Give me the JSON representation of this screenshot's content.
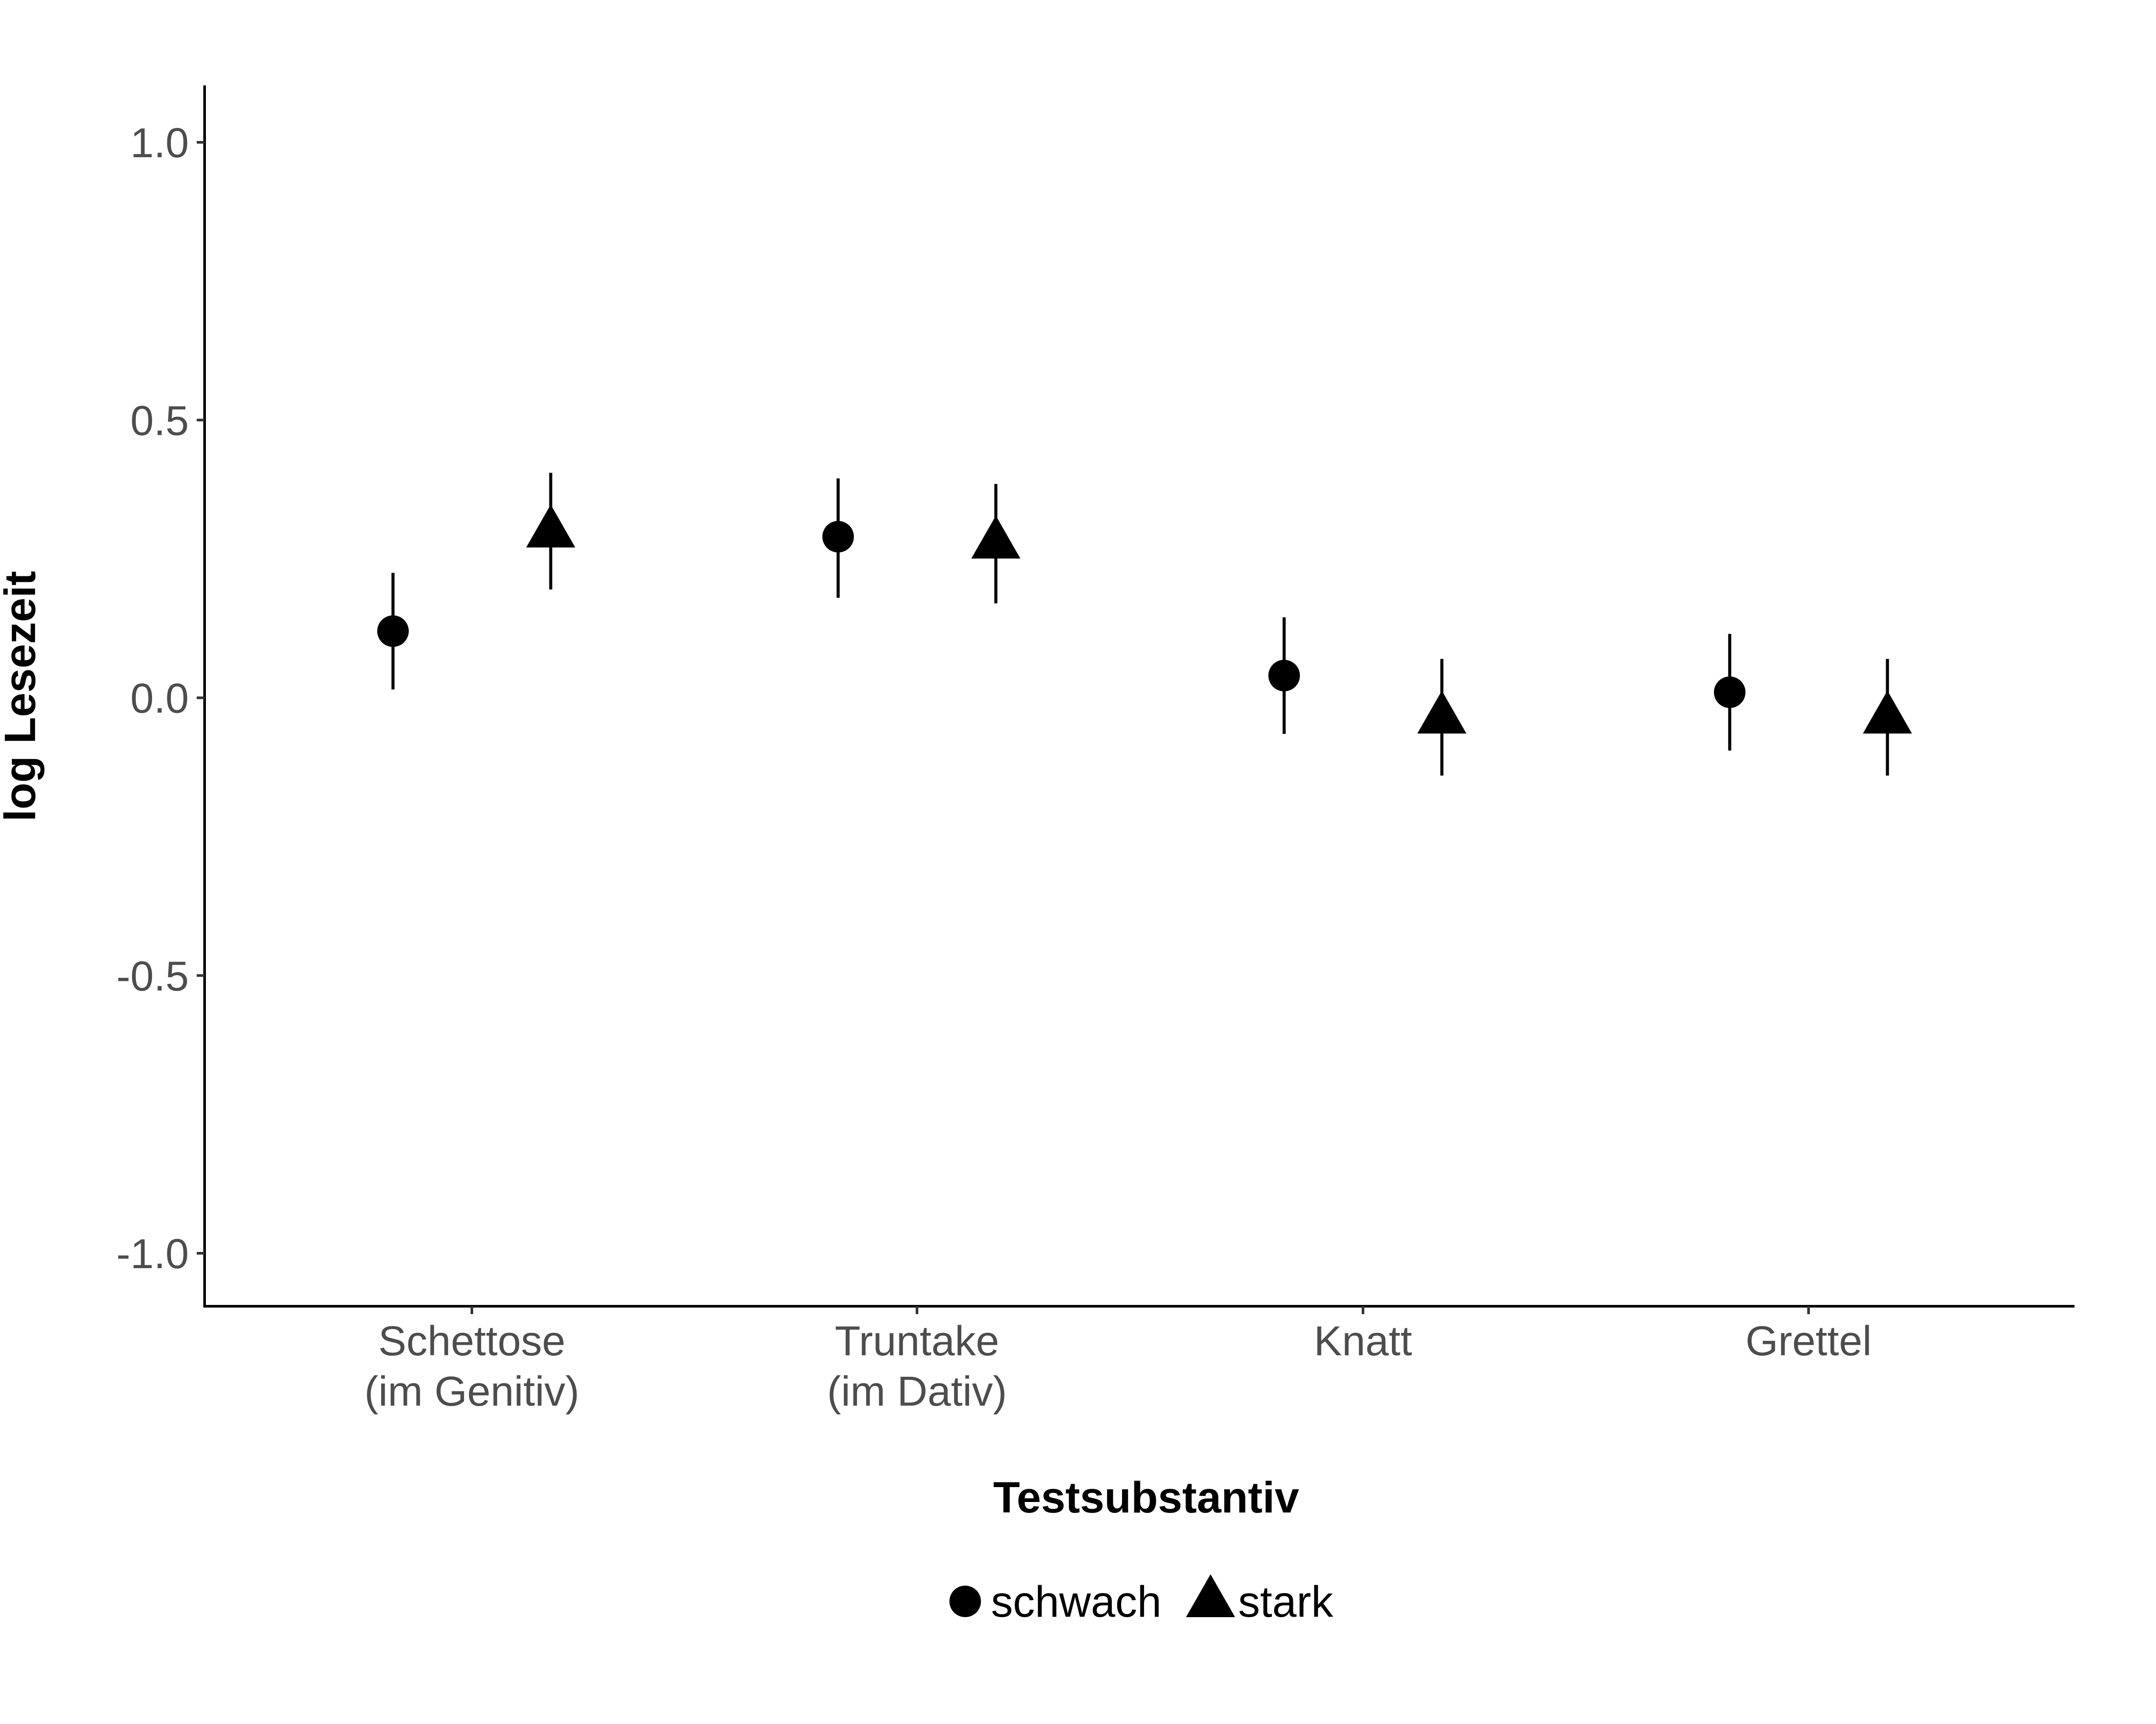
{
  "chart_data": {
    "type": "scatter",
    "title": "",
    "xlabel": "Testsubstantiv",
    "ylabel": "log Lesezeit",
    "ylim": [
      -1.1,
      1.1
    ],
    "yticks": [
      "-1.0",
      "-0.5",
      "0.0",
      "0.5",
      "1.0"
    ],
    "categories": [
      [
        "Schettose",
        "(im Genitiv)"
      ],
      [
        "Truntake",
        "(im Dativ)"
      ],
      [
        "Knatt"
      ],
      [
        "Grettel"
      ]
    ],
    "series": [
      {
        "name": "schwach",
        "marker": "circle",
        "values": [
          0.12,
          0.29,
          0.04,
          0.01
        ],
        "lower": [
          0.015,
          0.18,
          -0.065,
          -0.095
        ],
        "upper": [
          0.225,
          0.395,
          0.145,
          0.115
        ]
      },
      {
        "name": "stark",
        "marker": "triangle",
        "values": [
          0.3,
          0.28,
          -0.035,
          -0.035
        ],
        "lower": [
          0.195,
          0.17,
          -0.14,
          -0.14
        ],
        "upper": [
          0.405,
          0.385,
          0.07,
          0.07
        ]
      }
    ],
    "grid": false,
    "legend": "bottom",
    "color": "#000000"
  }
}
